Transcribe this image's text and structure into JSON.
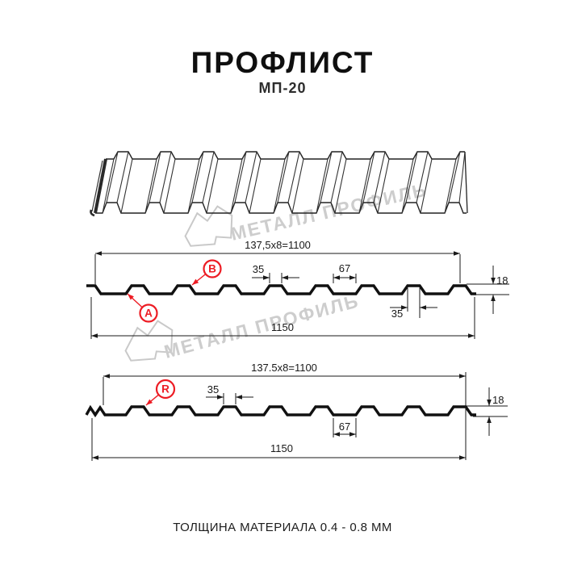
{
  "header": {
    "title": "ПРОФЛИСТ",
    "subtitle": "МП-20"
  },
  "watermark": {
    "brand_text": "МЕТАЛЛ ПРОФИЛЬ"
  },
  "profile_top": {
    "coverage_width": "137,5x8=1100",
    "overall_width": "1150",
    "rib_top_width": "35",
    "valley_width": "67",
    "height": "18",
    "rib_bottom_width": "35",
    "point_labels": [
      "А",
      "В"
    ]
  },
  "profile_bottom": {
    "coverage_width": "137.5x8=1100",
    "overall_width": "1150",
    "rib_top_width": "35",
    "valley_width": "67",
    "height": "18",
    "point_labels": [
      "R"
    ]
  },
  "footer": {
    "material_note": "ТОЛЩИНА МАТЕРИАЛА 0.4 - 0.8 ММ"
  },
  "colors": {
    "accent_red": "#ed1c24",
    "line_black": "#1a1a1a",
    "watermark_gray": "#cccccc"
  }
}
